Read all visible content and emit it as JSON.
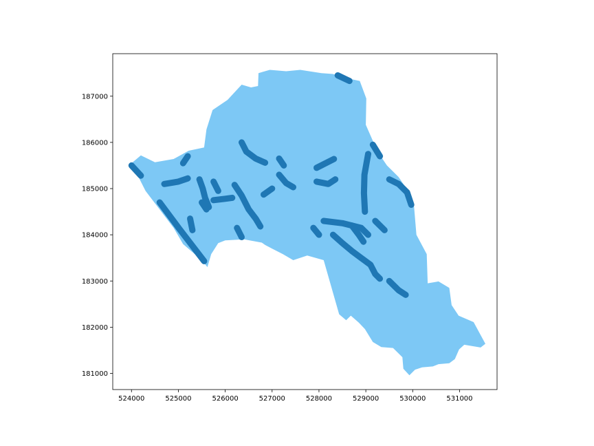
{
  "chart_data": {
    "type": "map",
    "xlim": [
      523600,
      531800
    ],
    "ylim": [
      180650,
      187920
    ],
    "x_ticks": [
      524000,
      525000,
      526000,
      527000,
      528000,
      529000,
      530000,
      531000
    ],
    "y_ticks": [
      181000,
      182000,
      183000,
      184000,
      185000,
      186000,
      187000
    ],
    "x_tick_labels": [
      "524000",
      "525000",
      "526000",
      "527000",
      "528000",
      "529000",
      "530000",
      "531000"
    ],
    "y_tick_labels": [
      "181000",
      "182000",
      "183000",
      "184000",
      "185000",
      "186000",
      "187000"
    ],
    "grid": false,
    "colors": {
      "boundary_fill": "#7dc8f5",
      "buffer_fill": "#1f77b4",
      "axis": "#000000"
    },
    "boundary": [
      [
        523990,
        185540
      ],
      [
        524200,
        185720
      ],
      [
        524500,
        185570
      ],
      [
        524900,
        185640
      ],
      [
        525220,
        185820
      ],
      [
        525550,
        185890
      ],
      [
        525600,
        186280
      ],
      [
        525730,
        186700
      ],
      [
        526050,
        186920
      ],
      [
        526350,
        187250
      ],
      [
        526550,
        187190
      ],
      [
        526700,
        187220
      ],
      [
        526710,
        187500
      ],
      [
        526950,
        187570
      ],
      [
        527300,
        187540
      ],
      [
        527600,
        187570
      ],
      [
        528050,
        187500
      ],
      [
        528300,
        187480
      ],
      [
        528550,
        187400
      ],
      [
        528870,
        187330
      ],
      [
        529010,
        186950
      ],
      [
        529000,
        186380
      ],
      [
        529250,
        185800
      ],
      [
        529450,
        185500
      ],
      [
        529700,
        185250
      ],
      [
        529900,
        184950
      ],
      [
        530030,
        184600
      ],
      [
        530080,
        184000
      ],
      [
        530300,
        183580
      ],
      [
        530320,
        182950
      ],
      [
        530550,
        182990
      ],
      [
        530780,
        182850
      ],
      [
        530830,
        182480
      ],
      [
        530980,
        182250
      ],
      [
        531300,
        182110
      ],
      [
        531550,
        181640
      ],
      [
        531450,
        181560
      ],
      [
        531100,
        181620
      ],
      [
        530990,
        181520
      ],
      [
        530900,
        181310
      ],
      [
        530780,
        181220
      ],
      [
        530550,
        181200
      ],
      [
        530430,
        181150
      ],
      [
        530200,
        181130
      ],
      [
        530050,
        181080
      ],
      [
        529930,
        180960
      ],
      [
        529800,
        181100
      ],
      [
        529780,
        181350
      ],
      [
        529580,
        181550
      ],
      [
        529330,
        181570
      ],
      [
        529150,
        181680
      ],
      [
        528980,
        181960
      ],
      [
        528850,
        182100
      ],
      [
        528680,
        182250
      ],
      [
        528580,
        182150
      ],
      [
        528430,
        182280
      ],
      [
        528100,
        183450
      ],
      [
        527750,
        183550
      ],
      [
        527450,
        183450
      ],
      [
        527230,
        183580
      ],
      [
        527000,
        183700
      ],
      [
        526850,
        183780
      ],
      [
        526780,
        183830
      ],
      [
        526400,
        183900
      ],
      [
        526000,
        183880
      ],
      [
        525850,
        183820
      ],
      [
        525700,
        183580
      ],
      [
        525620,
        183300
      ],
      [
        525500,
        183450
      ],
      [
        525100,
        183800
      ],
      [
        524900,
        184150
      ],
      [
        524600,
        184550
      ],
      [
        524300,
        184950
      ],
      [
        524150,
        185250
      ],
      [
        523990,
        185540
      ]
    ],
    "buffer_paths": [
      [
        [
          524000,
          185500
        ],
        [
          524200,
          185280
        ]
      ],
      [
        [
          524600,
          184700
        ],
        [
          525020,
          184130
        ],
        [
          525550,
          183430
        ]
      ],
      [
        [
          524700,
          185100
        ],
        [
          525000,
          185150
        ],
        [
          525200,
          185220
        ]
      ],
      [
        [
          525100,
          185550
        ],
        [
          525200,
          185700
        ]
      ],
      [
        [
          525250,
          184350
        ],
        [
          525300,
          184100
        ]
      ],
      [
        [
          525450,
          185200
        ],
        [
          525520,
          185000
        ],
        [
          525570,
          184800
        ],
        [
          525650,
          184600
        ]
      ],
      [
        [
          525750,
          184750
        ],
        [
          526000,
          184780
        ],
        [
          526150,
          184800
        ]
      ],
      [
        [
          525500,
          184700
        ],
        [
          525600,
          184550
        ]
      ],
      [
        [
          526200,
          185080
        ],
        [
          526350,
          184850
        ],
        [
          526500,
          184550
        ],
        [
          526650,
          184350
        ],
        [
          526750,
          184180
        ]
      ],
      [
        [
          526350,
          186000
        ],
        [
          526450,
          185800
        ],
        [
          526650,
          185650
        ],
        [
          526850,
          185560
        ]
      ],
      [
        [
          526250,
          184150
        ],
        [
          526350,
          183950
        ]
      ],
      [
        [
          527150,
          185650
        ],
        [
          527250,
          185500
        ]
      ],
      [
        [
          527150,
          185300
        ],
        [
          527300,
          185120
        ],
        [
          527450,
          185030
        ]
      ],
      [
        [
          526820,
          184870
        ],
        [
          527000,
          185000
        ]
      ],
      [
        [
          527950,
          185450
        ],
        [
          528320,
          185640
        ]
      ],
      [
        [
          527950,
          185150
        ],
        [
          528200,
          185100
        ],
        [
          528350,
          185200
        ]
      ],
      [
        [
          528100,
          184300
        ],
        [
          528500,
          184250
        ],
        [
          528900,
          184150
        ],
        [
          529050,
          184000
        ]
      ],
      [
        [
          527880,
          184150
        ],
        [
          528000,
          184000
        ]
      ],
      [
        [
          528300,
          184000
        ],
        [
          528500,
          183820
        ],
        [
          528700,
          183650
        ],
        [
          528900,
          183500
        ],
        [
          529100,
          183350
        ],
        [
          529200,
          183150
        ],
        [
          529300,
          183050
        ]
      ],
      [
        [
          528700,
          184200
        ],
        [
          528850,
          184000
        ],
        [
          528950,
          183850
        ]
      ],
      [
        [
          529050,
          185750
        ],
        [
          528970,
          185300
        ],
        [
          528960,
          184900
        ],
        [
          528980,
          184500
        ]
      ],
      [
        [
          529150,
          185950
        ],
        [
          529300,
          185700
        ]
      ],
      [
        [
          529200,
          184300
        ],
        [
          529400,
          184100
        ]
      ],
      [
        [
          529500,
          185200
        ],
        [
          529700,
          185100
        ],
        [
          529880,
          184920
        ],
        [
          529970,
          184650
        ]
      ],
      [
        [
          529500,
          183000
        ],
        [
          529700,
          182800
        ],
        [
          529850,
          182700
        ]
      ],
      [
        [
          528400,
          187450
        ],
        [
          528650,
          187330
        ]
      ],
      [
        [
          525750,
          185150
        ],
        [
          525850,
          184950
        ]
      ]
    ]
  }
}
